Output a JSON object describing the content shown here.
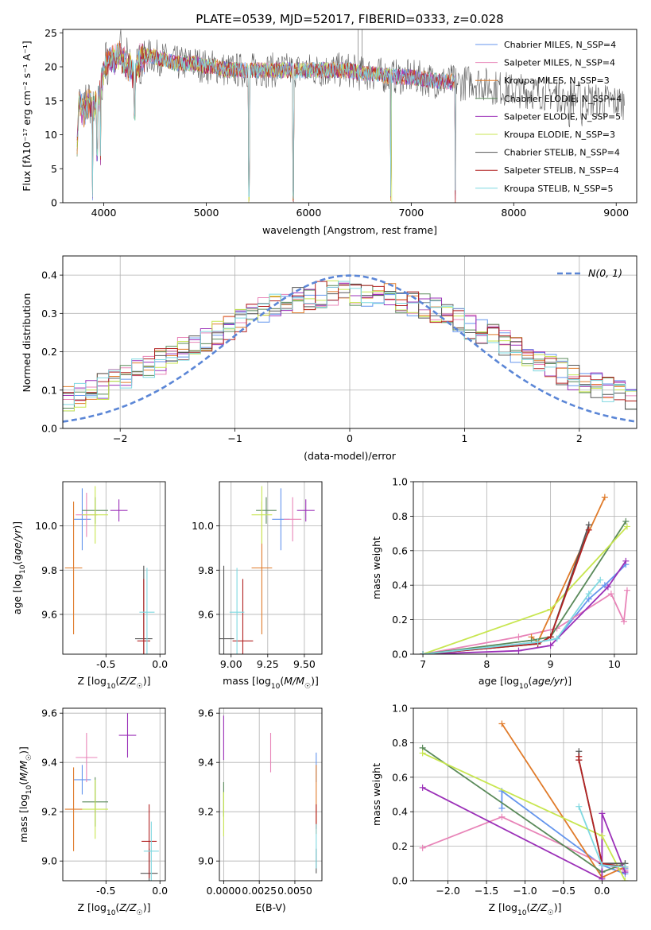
{
  "figure": {
    "title": "PLATE=0539, MJD=52017, FIBERID=0333, z=0.028"
  },
  "series_styles": [
    {
      "name": "Chabrier MILES",
      "color": "#6495ed"
    },
    {
      "name": "Salpeter MILES",
      "color": "#e884b8"
    },
    {
      "name": "Kroupa MILES",
      "color": "#e07b2a"
    },
    {
      "name": "Chabrier ELODIE",
      "color": "#5a8a5a"
    },
    {
      "name": "Salpeter ELODIE",
      "color": "#9b30b8"
    },
    {
      "name": "Kroupa ELODIE",
      "color": "#c8e650"
    },
    {
      "name": "Chabrier STELIB",
      "color": "#555555"
    },
    {
      "name": "Salpeter STELIB",
      "color": "#b22222"
    },
    {
      "name": "Kroupa STELIB",
      "color": "#7fd8e0"
    }
  ],
  "chart_data": [
    {
      "id": "spectrum",
      "type": "line",
      "xlabel": "wavelength [Angstrom, rest frame]",
      "ylabel": "Flux [fλ10⁻¹⁷ erg cm⁻² s⁻¹ A⁻¹]",
      "xlim": [
        3600,
        9200
      ],
      "ylim": [
        0,
        25.5
      ],
      "xticks": [
        4000,
        5000,
        6000,
        7000,
        8000,
        9000
      ],
      "yticks": [
        0,
        5,
        10,
        15,
        20,
        25
      ],
      "grid": false,
      "legend": [
        "Chabrier MILES, N_SSP=4",
        "Salpeter MILES, N_SSP=4",
        "Kroupa MILES, N_SSP=3",
        "Chabrier ELODIE, N_SSP=4",
        "Salpeter ELODIE, N_SSP=5",
        "Kroupa ELODIE, N_SSP=3",
        "Chabrier STELIB, N_SSP=4",
        "Salpeter STELIB, N_SSP=4",
        "Kroupa STELIB, N_SSP=5"
      ],
      "legend_placement": "upper right",
      "continuum": [
        [
          3740,
          9.0
        ],
        [
          3760,
          15.5
        ],
        [
          3800,
          13.0
        ],
        [
          3850,
          15.0
        ],
        [
          3900,
          14.0
        ],
        [
          3950,
          15.0
        ],
        [
          4000,
          19.5
        ],
        [
          4050,
          21.5
        ],
        [
          4100,
          21.0
        ],
        [
          4150,
          22.0
        ],
        [
          4200,
          20.5
        ],
        [
          4250,
          20.0
        ],
        [
          4300,
          18.5
        ],
        [
          4350,
          21.0
        ],
        [
          4400,
          21.5
        ],
        [
          4500,
          21.5
        ],
        [
          4600,
          21.0
        ],
        [
          4700,
          20.5
        ],
        [
          4800,
          20.5
        ],
        [
          4900,
          20.5
        ],
        [
          5000,
          20.0
        ],
        [
          5100,
          20.0
        ],
        [
          5200,
          19.5
        ],
        [
          5300,
          19.5
        ],
        [
          5400,
          19.5
        ],
        [
          5500,
          19.5
        ],
        [
          5600,
          19.5
        ],
        [
          5700,
          19.5
        ],
        [
          5800,
          19.5
        ],
        [
          5900,
          19.5
        ],
        [
          6000,
          19.5
        ],
        [
          6100,
          19.5
        ],
        [
          6200,
          19.5
        ],
        [
          6300,
          19.5
        ],
        [
          6400,
          19.5
        ],
        [
          6500,
          19.0
        ],
        [
          6600,
          19.0
        ],
        [
          6700,
          18.8
        ],
        [
          6800,
          18.6
        ],
        [
          6900,
          18.5
        ],
        [
          7000,
          18.5
        ],
        [
          7100,
          18.3
        ],
        [
          7200,
          18.0
        ],
        [
          7300,
          17.8
        ],
        [
          7400,
          17.8
        ],
        [
          7500,
          17.5
        ],
        [
          7600,
          18.0
        ],
        [
          7700,
          17.5
        ],
        [
          7800,
          17.0
        ],
        [
          7900,
          16.8
        ],
        [
          8000,
          16.5
        ],
        [
          8100,
          16.5
        ],
        [
          8200,
          16.3
        ],
        [
          8300,
          16.2
        ],
        [
          8400,
          16.0
        ],
        [
          8500,
          15.8
        ],
        [
          8600,
          15.5
        ],
        [
          8700,
          15.3
        ],
        [
          8800,
          15.0
        ],
        [
          8900,
          15.0
        ],
        [
          9000,
          14.8
        ],
        [
          9100,
          14.8
        ]
      ],
      "dips": [
        [
          3890,
          0
        ],
        [
          3935,
          6
        ],
        [
          3968,
          5
        ],
        [
          4300,
          12
        ],
        [
          5418,
          0
        ],
        [
          5848,
          0
        ],
        [
          6800,
          0
        ],
        [
          7430,
          0
        ],
        [
          8500,
          13
        ],
        [
          8542,
          10
        ],
        [
          8662,
          11
        ]
      ]
    },
    {
      "id": "residuals",
      "type": "histogram",
      "xlabel": "(data-model)/error",
      "ylabel": "Normed distribution",
      "xlim": [
        -2.5,
        2.5
      ],
      "ylim": [
        0,
        0.45
      ],
      "xticks": [
        -2,
        -1,
        0,
        1,
        2
      ],
      "yticks": [
        0.0,
        0.1,
        0.2,
        0.3,
        0.4
      ],
      "grid": true,
      "bin_width": 0.1,
      "bins_from": -2.5,
      "bins_to": 2.5,
      "reference": {
        "label": "N(0, 1)",
        "mean": 0,
        "sigma": 1
      },
      "legend_placement": "upper right"
    },
    {
      "id": "age_vs_Z",
      "type": "errorbar",
      "xlabel": "Z [log10(Z/Z☉)]",
      "ylabel": "age  [log10(age/yr)]",
      "xlim": [
        -0.9,
        0.05
      ],
      "ylim": [
        9.42,
        10.2
      ],
      "xticks": [
        -0.5,
        0.0
      ],
      "yticks": [
        9.6,
        9.8,
        10.0
      ],
      "grid": true,
      "points": [
        {
          "series": "Chabrier MILES",
          "x": -0.72,
          "xerr": 0.08,
          "y": 10.03,
          "yerr": 0.14
        },
        {
          "series": "Salpeter MILES",
          "x": -0.68,
          "xerr": 0.1,
          "y": 10.05,
          "yerr": 0.1
        },
        {
          "series": "Kroupa MILES",
          "x": -0.8,
          "xerr": 0.08,
          "y": 9.81,
          "yerr": 0.3
        },
        {
          "series": "Chabrier ELODIE",
          "x": -0.6,
          "xerr": 0.12,
          "y": 10.07,
          "yerr": 0.06
        },
        {
          "series": "Salpeter ELODIE",
          "x": -0.38,
          "xerr": 0.08,
          "y": 10.07,
          "yerr": 0.05
        },
        {
          "series": "Kroupa ELODIE",
          "x": -0.6,
          "xerr": 0.12,
          "y": 10.05,
          "yerr": 0.13
        },
        {
          "series": "Chabrier STELIB",
          "x": -0.15,
          "xerr": 0.08,
          "y": 9.49,
          "yerr": 0.33
        },
        {
          "series": "Salpeter STELIB",
          "x": -0.15,
          "xerr": 0.06,
          "y": 9.48,
          "yerr": 0.28
        },
        {
          "series": "Kroupa STELIB",
          "x": -0.12,
          "xerr": 0.07,
          "y": 9.61,
          "yerr": 0.2
        }
      ]
    },
    {
      "id": "age_vs_mass",
      "type": "errorbar",
      "xlabel": "mass [log10(M/M☉)]",
      "ylabel": "",
      "xlim": [
        8.92,
        9.62
      ],
      "ylim": [
        9.42,
        10.2
      ],
      "xticks": [
        9.0,
        9.25,
        9.5
      ],
      "yticks": [
        9.6,
        9.8,
        10.0
      ],
      "grid": true,
      "points": [
        {
          "series": "Chabrier MILES",
          "x": 9.34,
          "xerr": 0.06,
          "y": 10.03,
          "yerr": 0.14
        },
        {
          "series": "Salpeter MILES",
          "x": 9.42,
          "xerr": 0.06,
          "y": 10.03,
          "yerr": 0.1
        },
        {
          "series": "Kroupa MILES",
          "x": 9.21,
          "xerr": 0.07,
          "y": 9.81,
          "yerr": 0.3
        },
        {
          "series": "Chabrier ELODIE",
          "x": 9.24,
          "xerr": 0.07,
          "y": 10.07,
          "yerr": 0.06
        },
        {
          "series": "Salpeter ELODIE",
          "x": 9.51,
          "xerr": 0.06,
          "y": 10.07,
          "yerr": 0.05
        },
        {
          "series": "Kroupa ELODIE",
          "x": 9.21,
          "xerr": 0.07,
          "y": 10.05,
          "yerr": 0.13
        },
        {
          "series": "Chabrier STELIB",
          "x": 8.95,
          "xerr": 0.07,
          "y": 9.49,
          "yerr": 0.33
        },
        {
          "series": "Salpeter STELIB",
          "x": 9.08,
          "xerr": 0.07,
          "y": 9.48,
          "yerr": 0.28
        },
        {
          "series": "Kroupa STELIB",
          "x": 9.04,
          "xerr": 0.05,
          "y": 9.61,
          "yerr": 0.2
        }
      ]
    },
    {
      "id": "weight_vs_age",
      "type": "line",
      "xlabel": "age  [log10(age/yr)]",
      "ylabel": "mass weight",
      "xlim": [
        6.85,
        10.35
      ],
      "ylim": [
        0,
        1.0
      ],
      "xticks": [
        7,
        8,
        9,
        10
      ],
      "yticks": [
        0.0,
        0.2,
        0.4,
        0.6,
        0.8,
        1.0
      ],
      "grid": true,
      "series": [
        {
          "name": "Chabrier MILES",
          "x": [
            7.0,
            8.8,
            9.1,
            9.6,
            9.85,
            10.18
          ],
          "y": [
            0.0,
            0.07,
            0.09,
            0.32,
            0.4,
            0.52
          ]
        },
        {
          "name": "Salpeter MILES",
          "x": [
            7.0,
            8.5,
            9.1,
            9.95,
            10.15,
            10.2
          ],
          "y": [
            0.0,
            0.1,
            0.15,
            0.35,
            0.19,
            0.37
          ]
        },
        {
          "name": "Kroupa MILES",
          "x": [
            8.7,
            8.8,
            9.85
          ],
          "y": [
            0.1,
            0.07,
            0.91
          ]
        },
        {
          "name": "Chabrier ELODIE",
          "x": [
            7.0,
            8.7,
            9.0,
            10.18
          ],
          "y": [
            0.0,
            0.08,
            0.1,
            0.77
          ]
        },
        {
          "name": "Salpeter ELODIE",
          "x": [
            7.0,
            8.5,
            9.0,
            9.9,
            10.18
          ],
          "y": [
            0.0,
            0.02,
            0.05,
            0.39,
            0.54
          ]
        },
        {
          "name": "Kroupa ELODIE",
          "x": [
            7.0,
            9.0,
            10.2
          ],
          "y": [
            0.0,
            0.26,
            0.74
          ]
        },
        {
          "name": "Chabrier STELIB",
          "x": [
            7.0,
            8.8,
            9.0,
            9.6
          ],
          "y": [
            0.0,
            0.06,
            0.1,
            0.75
          ]
        },
        {
          "name": "Salpeter STELIB",
          "x": [
            7.0,
            8.8,
            9.0,
            9.6
          ],
          "y": [
            0.0,
            0.06,
            0.1,
            0.72
          ]
        },
        {
          "name": "Kroupa STELIB",
          "x": [
            7.0,
            8.8,
            9.1,
            9.6,
            9.78
          ],
          "y": [
            0.0,
            0.07,
            0.09,
            0.35,
            0.43
          ]
        }
      ]
    },
    {
      "id": "mass_vs_Z",
      "type": "errorbar",
      "xlabel": "Z [log10(Z/Z☉)]",
      "ylabel": "mass [log10(M/M☉)]",
      "xlim": [
        -0.9,
        0.05
      ],
      "ylim": [
        8.92,
        9.62
      ],
      "xticks": [
        -0.5,
        0.0
      ],
      "yticks": [
        9.0,
        9.2,
        9.4,
        9.6
      ],
      "grid": true,
      "points": [
        {
          "series": "Chabrier MILES",
          "x": -0.72,
          "xerr": 0.08,
          "y": 9.33,
          "yerr": 0.06
        },
        {
          "series": "Salpeter MILES",
          "x": -0.68,
          "xerr": 0.1,
          "y": 9.42,
          "yerr": 0.1
        },
        {
          "series": "Kroupa MILES",
          "x": -0.8,
          "xerr": 0.08,
          "y": 9.21,
          "yerr": 0.17
        },
        {
          "series": "Chabrier ELODIE",
          "x": -0.6,
          "xerr": 0.12,
          "y": 9.24,
          "yerr": 0.1
        },
        {
          "series": "Salpeter ELODIE",
          "x": -0.3,
          "xerr": 0.08,
          "y": 9.51,
          "yerr": 0.09
        },
        {
          "series": "Kroupa ELODIE",
          "x": -0.6,
          "xerr": 0.12,
          "y": 9.21,
          "yerr": 0.12
        },
        {
          "series": "Chabrier STELIB",
          "x": -0.1,
          "xerr": 0.08,
          "y": 8.95,
          "yerr": 0.1
        },
        {
          "series": "Salpeter STELIB",
          "x": -0.1,
          "xerr": 0.07,
          "y": 9.08,
          "yerr": 0.15
        },
        {
          "series": "Kroupa STELIB",
          "x": -0.08,
          "xerr": 0.07,
          "y": 9.04,
          "yerr": 0.12
        }
      ]
    },
    {
      "id": "mass_vs_ebv",
      "type": "errorbar",
      "xlabel": "E(B-V)",
      "ylabel": "",
      "xlim": [
        -0.0003,
        0.0069
      ],
      "ylim": [
        8.92,
        9.62
      ],
      "xticks": [
        0.0,
        0.0025,
        0.005
      ],
      "xticklabels": [
        "0.0000",
        "0.0025",
        "0.0050"
      ],
      "yticks": [
        9.0,
        9.2,
        9.4,
        9.6
      ],
      "grid": true,
      "points": [
        {
          "series": "Chabrier MILES",
          "x": 0.0065,
          "xerr": 0,
          "y": 9.38,
          "yerr": 0.06
        },
        {
          "series": "Salpeter MILES",
          "x": 0.0033,
          "xerr": 0,
          "y": 9.44,
          "yerr": 0.08
        },
        {
          "series": "Kroupa MILES",
          "x": 0.0065,
          "xerr": 0,
          "y": 9.25,
          "yerr": 0.14
        },
        {
          "series": "Chabrier ELODIE",
          "x": 0.0,
          "xerr": 0,
          "y": 9.25,
          "yerr": 0.07
        },
        {
          "series": "Salpeter ELODIE",
          "x": 0.0,
          "xerr": 0,
          "y": 9.5,
          "yerr": 0.09
        },
        {
          "series": "Kroupa ELODIE",
          "x": 0.0,
          "xerr": 0,
          "y": 9.19,
          "yerr": 0.09
        },
        {
          "series": "Chabrier STELIB",
          "x": 0.0065,
          "xerr": 0,
          "y": 9.0,
          "yerr": 0.05
        },
        {
          "series": "Salpeter STELIB",
          "x": 0.0065,
          "xerr": 0,
          "y": 9.18,
          "yerr": 0.05
        },
        {
          "series": "Kroupa STELIB",
          "x": 0.0065,
          "xerr": 0,
          "y": 9.06,
          "yerr": 0.09
        }
      ]
    },
    {
      "id": "weight_vs_Z",
      "type": "line",
      "xlabel": "Z [log10(Z/Z☉)]",
      "ylabel": "mass weight",
      "xlim": [
        -2.45,
        0.45
      ],
      "ylim": [
        0,
        1.0
      ],
      "xticks": [
        -2.0,
        -1.5,
        -1.0,
        -0.5,
        0.0
      ],
      "yticks": [
        0.0,
        0.2,
        0.4,
        0.6,
        0.8,
        1.0
      ],
      "grid": true,
      "series": [
        {
          "name": "Chabrier MILES",
          "x": [
            -1.3,
            -1.3,
            0.0,
            0.3,
            0.3
          ],
          "y": [
            0.42,
            0.52,
            0.09,
            0.04,
            0.07
          ]
        },
        {
          "name": "Salpeter MILES",
          "x": [
            -2.33,
            -1.3,
            0.0,
            0.3,
            0.3
          ],
          "y": [
            0.19,
            0.37,
            0.1,
            0.06,
            0.08
          ]
        },
        {
          "name": "Kroupa MILES",
          "x": [
            -1.3,
            0.0,
            0.3
          ],
          "y": [
            0.91,
            0.02,
            0.08
          ]
        },
        {
          "name": "Chabrier ELODIE",
          "x": [
            -2.33,
            0.0,
            0.3
          ],
          "y": [
            0.77,
            0.05,
            0.1
          ]
        },
        {
          "name": "Salpeter ELODIE",
          "x": [
            -2.33,
            0.0,
            0.0,
            0.3
          ],
          "y": [
            0.54,
            0.01,
            0.39,
            0.05
          ]
        },
        {
          "name": "Kroupa ELODIE",
          "x": [
            -2.33,
            0.0,
            0.3
          ],
          "y": [
            0.74,
            0.26,
            0.0
          ]
        },
        {
          "name": "Chabrier STELIB",
          "x": [
            -0.3,
            -0.3,
            0.0,
            0.3
          ],
          "y": [
            0.75,
            0.7,
            0.1,
            0.1
          ]
        },
        {
          "name": "Salpeter STELIB",
          "x": [
            -0.3,
            -0.3,
            0.0,
            0.3
          ],
          "y": [
            0.72,
            0.7,
            0.1,
            0.08
          ]
        },
        {
          "name": "Kroupa STELIB",
          "x": [
            -0.3,
            0.0,
            0.3
          ],
          "y": [
            0.43,
            0.09,
            0.08
          ]
        }
      ]
    }
  ]
}
